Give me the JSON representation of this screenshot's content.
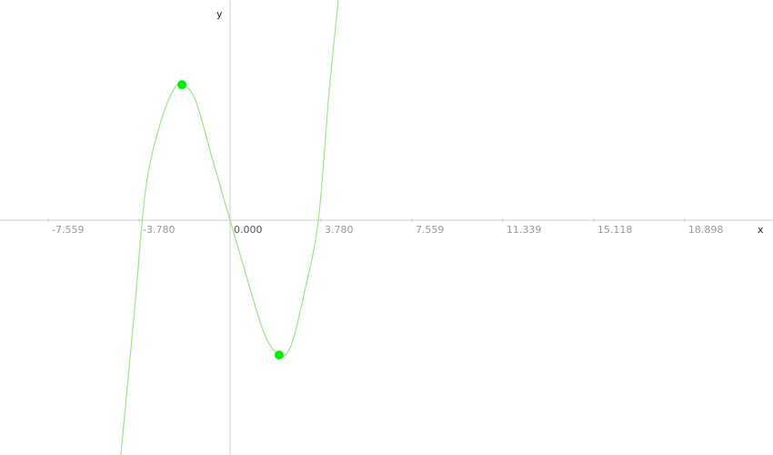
{
  "chart_data": {
    "type": "line",
    "x_label": "x",
    "y_label": "y",
    "xlim": [
      -9.565,
      22.57
    ],
    "ylim": [
      -9.754,
      9.149
    ],
    "xticks": [
      -11.339,
      -7.559,
      {
        "value": -3.78,
        "label": "-3.780"
      },
      {
        "value": 0,
        "label": "0.000"
      },
      {
        "value": 3.78,
        "label": "3.780"
      },
      7.559,
      11.339,
      15.118,
      18.898
    ],
    "series": [
      {
        "color": "#a3e08a",
        "x": [
          -4.54,
          -3.97,
          -3.52,
          -2.95,
          -2.38,
          -2.0,
          -1.44,
          -0.68,
          0,
          0.64,
          1.4,
          2.04,
          2.53,
          3.1,
          3.67,
          4.12,
          4.5
        ],
        "values": [
          -9.75,
          -3.71,
          1.21,
          3.86,
          5.37,
          5.63,
          4.99,
          2.34,
          0,
          -2.19,
          -4.65,
          -5.6,
          -5.22,
          -2.95,
          0,
          5.37,
          9.15
        ]
      }
    ],
    "points": {
      "color": "#00ee00",
      "x": [
        -2.0,
        2.04
      ],
      "values": [
        5.63,
        -5.6
      ]
    }
  }
}
